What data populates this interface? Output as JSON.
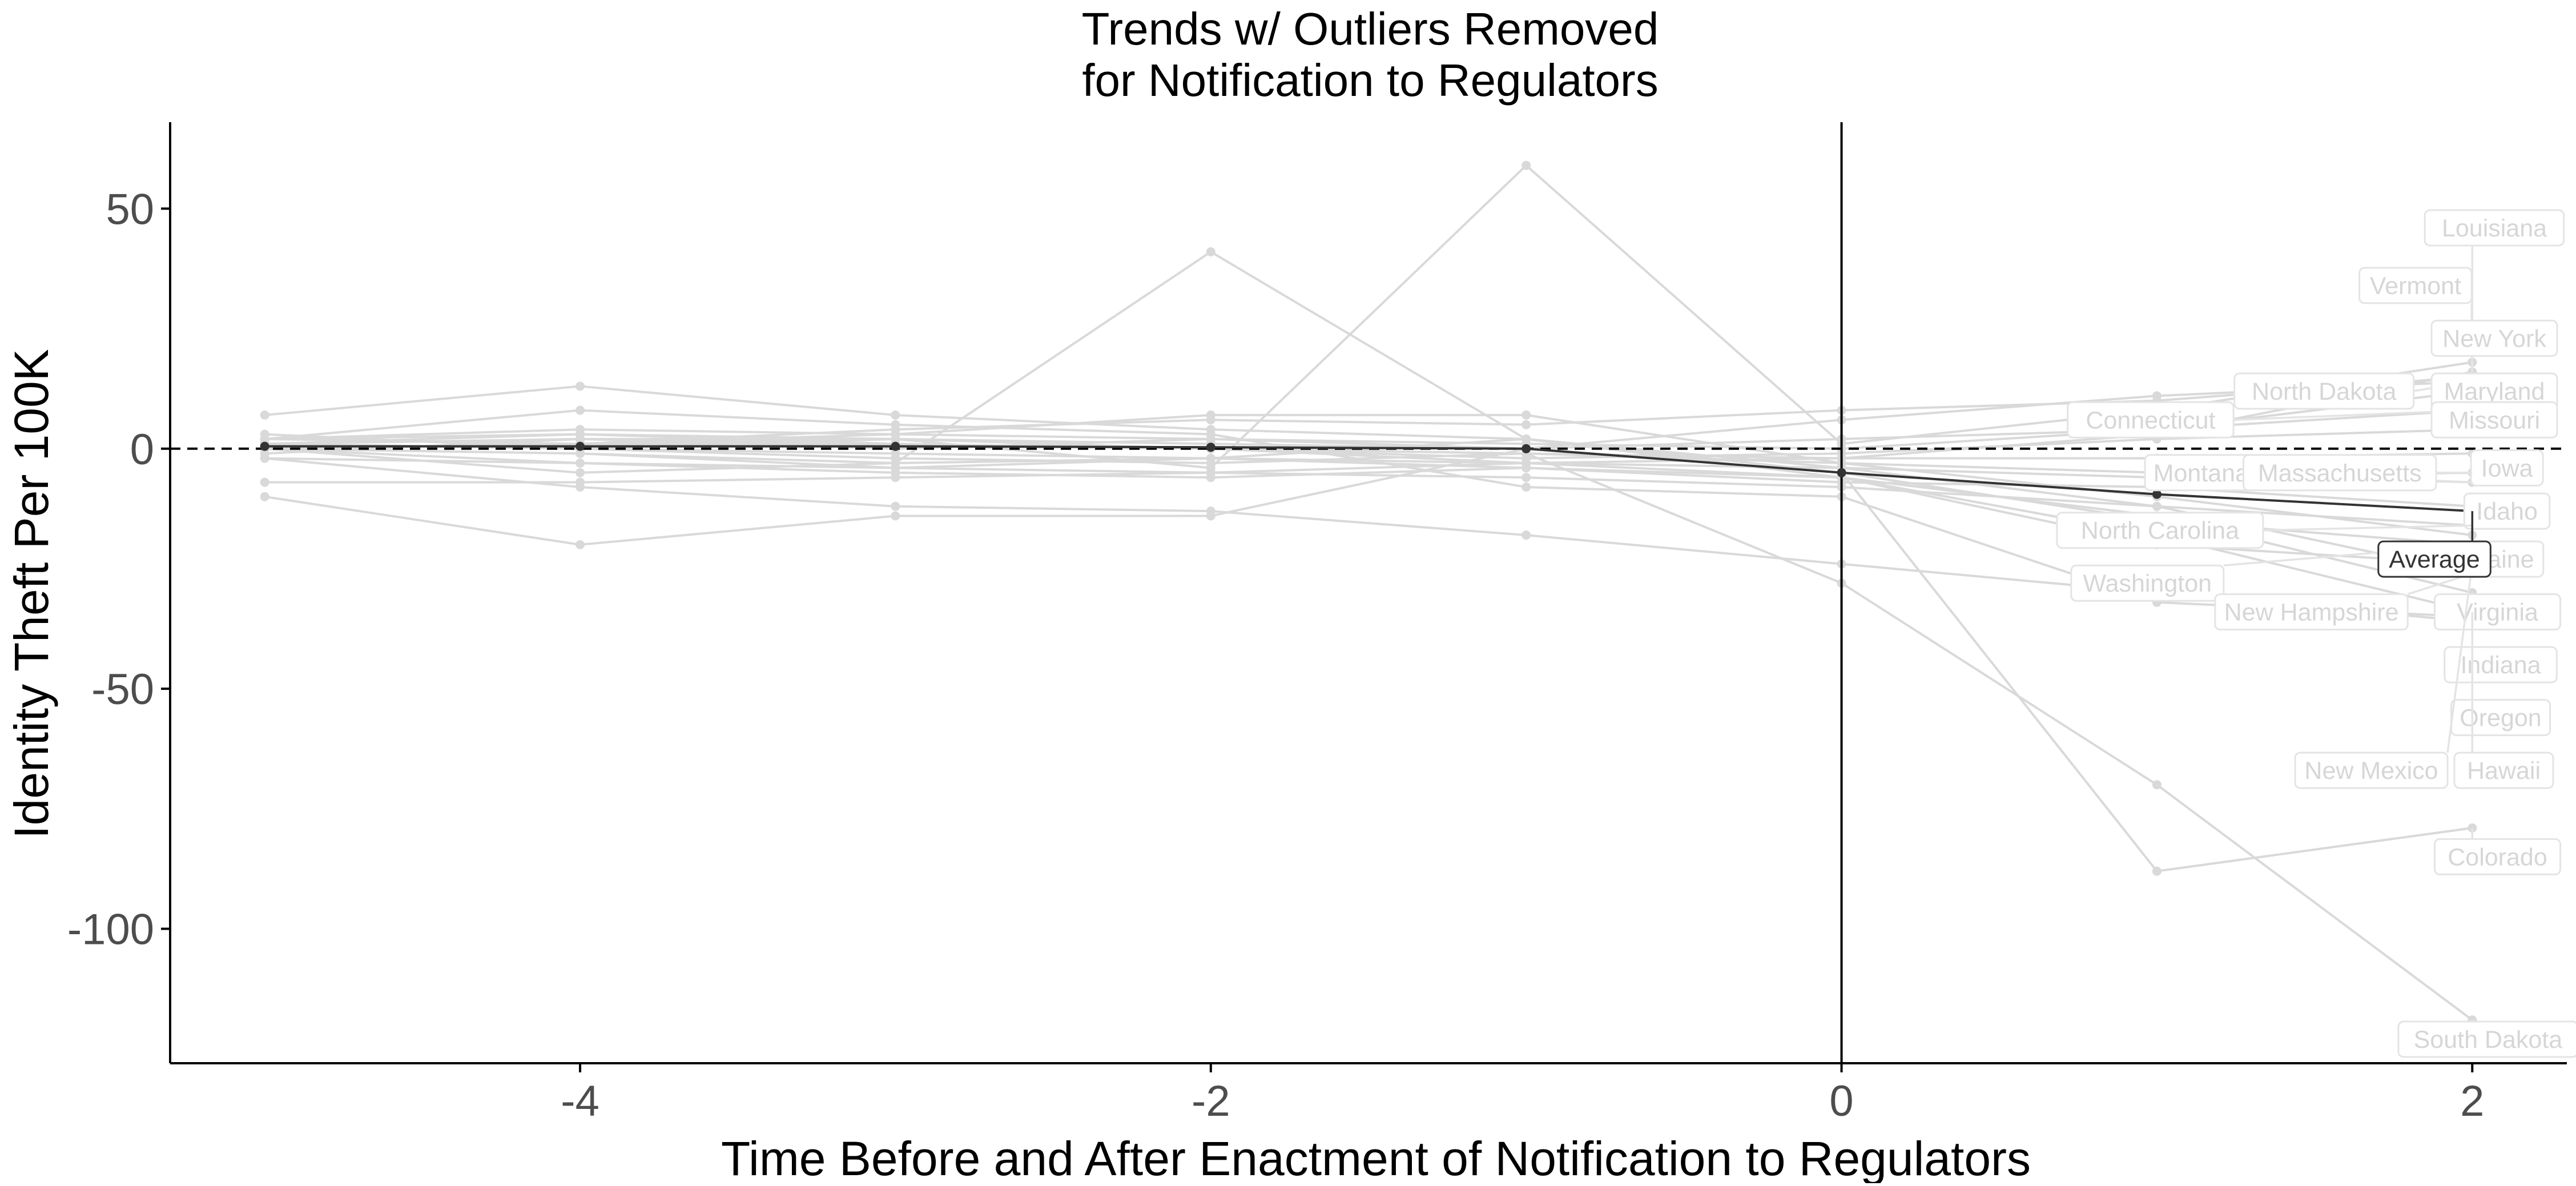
{
  "chart_data": {
    "type": "line",
    "title_lines": [
      "Trends w/ Outliers Removed",
      "for Notification to Regulators"
    ],
    "xlabel": "Time Before and After Enactment of Notification to Regulators",
    "ylabel": "Identity Theft Per 100K",
    "xlim": [
      -5.3,
      2.3
    ],
    "ylim": [
      -128,
      68
    ],
    "x_ticks": [
      -4,
      -2,
      0,
      2
    ],
    "y_ticks": [
      50,
      0,
      -50,
      -100
    ],
    "x_tick_labels": [
      "-4",
      "-2",
      "0",
      "2"
    ],
    "y_tick_labels": [
      "50",
      "0",
      "-50",
      "-100"
    ],
    "reference_lines": {
      "horizontal_dashed_y": 0,
      "vertical_solid_x": 0
    },
    "grid": false,
    "legend": "none",
    "colors": {
      "state_lines": "#d9d9d9",
      "average_line": "#333333",
      "axis": "#000000"
    },
    "average_series": {
      "name": "Average",
      "points": [
        [
          -5,
          0.5
        ],
        [
          -4,
          0.5
        ],
        [
          -3,
          0.5
        ],
        [
          -2,
          0.3
        ],
        [
          -1,
          0
        ],
        [
          0,
          -5
        ],
        [
          1,
          -9.5
        ],
        [
          2,
          -13
        ]
      ]
    },
    "state_series": [
      {
        "name": "Louisiana",
        "label_y": 46,
        "points": [
          [
            -5,
            2
          ],
          [
            -4,
            3
          ],
          [
            -3,
            1
          ],
          [
            -2,
            0
          ],
          [
            -1,
            -1
          ],
          [
            0,
            -2
          ],
          [
            1,
            3
          ],
          [
            2,
            16
          ]
        ]
      },
      {
        "name": "Vermont",
        "label_y": 34,
        "points": [
          [
            -5,
            1
          ],
          [
            -4,
            2
          ],
          [
            -3,
            0
          ],
          [
            -2,
            2
          ],
          [
            -1,
            1
          ],
          [
            0,
            0
          ],
          [
            1,
            4
          ],
          [
            2,
            12
          ]
        ]
      },
      {
        "name": "New York",
        "label_y": 23,
        "points": [
          [
            -5,
            3
          ],
          [
            -4,
            0
          ],
          [
            -3,
            2
          ],
          [
            -2,
            -4
          ],
          [
            -1,
            59
          ],
          [
            0,
            1
          ],
          [
            1,
            8
          ],
          [
            2,
            18
          ]
        ]
      },
      {
        "name": "North Dakota",
        "label_y": 12,
        "points": [
          [
            -5,
            2
          ],
          [
            -4,
            4
          ],
          [
            -3,
            3
          ],
          [
            -2,
            2
          ],
          [
            -1,
            0
          ],
          [
            0,
            6
          ],
          [
            1,
            11
          ],
          [
            2,
            14
          ]
        ]
      },
      {
        "name": "Maryland",
        "label_y": 12,
        "points": [
          [
            -5,
            0
          ],
          [
            -4,
            1
          ],
          [
            -3,
            4
          ],
          [
            -2,
            6
          ],
          [
            -1,
            5
          ],
          [
            0,
            8
          ],
          [
            1,
            10
          ],
          [
            2,
            15
          ]
        ]
      },
      {
        "name": "Connecticut",
        "label_y": 6,
        "points": [
          [
            -5,
            1
          ],
          [
            -4,
            2
          ],
          [
            -3,
            2
          ],
          [
            -2,
            1
          ],
          [
            -1,
            0
          ],
          [
            0,
            2
          ],
          [
            1,
            4
          ],
          [
            2,
            8
          ]
        ]
      },
      {
        "name": "Missouri",
        "label_y": 6,
        "points": [
          [
            -5,
            0
          ],
          [
            -4,
            1
          ],
          [
            -3,
            1
          ],
          [
            -2,
            0
          ],
          [
            -1,
            -2
          ],
          [
            0,
            -1
          ],
          [
            1,
            2
          ],
          [
            2,
            4
          ]
        ]
      },
      {
        "name": "Iowa",
        "label_y": -4,
        "points": [
          [
            -5,
            -1
          ],
          [
            -4,
            2
          ],
          [
            -3,
            1
          ],
          [
            -2,
            0
          ],
          [
            -1,
            -3
          ],
          [
            0,
            -2
          ],
          [
            1,
            -2
          ],
          [
            2,
            -1
          ]
        ]
      },
      {
        "name": "Montana",
        "label_y": -5,
        "points": [
          [
            -5,
            1
          ],
          [
            -4,
            0
          ],
          [
            -3,
            -2
          ],
          [
            -2,
            -3
          ],
          [
            -1,
            -1
          ],
          [
            0,
            -3
          ],
          [
            1,
            -5
          ],
          [
            2,
            -7
          ]
        ]
      },
      {
        "name": "Massachusetts",
        "label_y": -5,
        "points": [
          [
            -5,
            0
          ],
          [
            -4,
            -1
          ],
          [
            -3,
            -4
          ],
          [
            -2,
            -5
          ],
          [
            -1,
            -3
          ],
          [
            0,
            -4
          ],
          [
            1,
            -6
          ],
          [
            2,
            -5
          ]
        ]
      },
      {
        "name": "Idaho",
        "label_y": -13,
        "points": [
          [
            -5,
            -2
          ],
          [
            -4,
            -3
          ],
          [
            -3,
            -5
          ],
          [
            -2,
            -6
          ],
          [
            -1,
            -4
          ],
          [
            0,
            -7
          ],
          [
            1,
            -8
          ],
          [
            2,
            -12
          ]
        ]
      },
      {
        "name": "North Carolina",
        "label_y": -17,
        "points": [
          [
            -5,
            -7
          ],
          [
            -4,
            -7
          ],
          [
            -3,
            -6
          ],
          [
            -2,
            -5
          ],
          [
            -1,
            -6
          ],
          [
            0,
            -8
          ],
          [
            1,
            -12
          ],
          [
            2,
            -16
          ]
        ]
      },
      {
        "name": "Maine",
        "label_y": -23,
        "points": [
          [
            -5,
            2
          ],
          [
            -4,
            1
          ],
          [
            -3,
            3
          ],
          [
            -2,
            7
          ],
          [
            -1,
            7
          ],
          [
            0,
            -3
          ],
          [
            1,
            -10
          ],
          [
            2,
            -18
          ]
        ]
      },
      {
        "name": "Washington",
        "label_y": -28,
        "points": [
          [
            -5,
            -10
          ],
          [
            -4,
            -20
          ],
          [
            -3,
            -14
          ],
          [
            -2,
            -14
          ],
          [
            -1,
            0
          ],
          [
            0,
            -5
          ],
          [
            1,
            -15
          ],
          [
            2,
            -20
          ]
        ]
      },
      {
        "name": "New Hampshire",
        "label_y": -34,
        "points": [
          [
            -5,
            7
          ],
          [
            -4,
            13
          ],
          [
            -3,
            7
          ],
          [
            -2,
            4
          ],
          [
            -1,
            2
          ],
          [
            0,
            -4
          ],
          [
            1,
            -12
          ],
          [
            2,
            -26
          ]
        ]
      },
      {
        "name": "Virginia",
        "label_y": -34,
        "points": [
          [
            -5,
            0
          ],
          [
            -4,
            -5
          ],
          [
            -3,
            -3
          ],
          [
            -2,
            41
          ],
          [
            -1,
            2
          ],
          [
            0,
            -6
          ],
          [
            1,
            -14
          ],
          [
            2,
            -30
          ]
        ]
      },
      {
        "name": "Indiana",
        "label_y": -45,
        "points": [
          [
            -5,
            0
          ],
          [
            -4,
            -1
          ],
          [
            -3,
            -3
          ],
          [
            -2,
            -2
          ],
          [
            -1,
            -4
          ],
          [
            0,
            -6
          ],
          [
            1,
            -18
          ],
          [
            2,
            -34
          ]
        ]
      },
      {
        "name": "Oregon",
        "label_y": -56,
        "points": [
          [
            -5,
            -2
          ],
          [
            -4,
            -8
          ],
          [
            -3,
            -12
          ],
          [
            -2,
            -13
          ],
          [
            -1,
            -18
          ],
          [
            0,
            -24
          ],
          [
            1,
            -30
          ],
          [
            2,
            -36
          ]
        ]
      },
      {
        "name": "New Mexico",
        "label_y": -67,
        "points": [
          [
            -5,
            1
          ],
          [
            -4,
            0
          ],
          [
            -3,
            -1
          ],
          [
            -2,
            -2
          ],
          [
            -1,
            -3
          ],
          [
            0,
            -6
          ],
          [
            1,
            -20
          ],
          [
            2,
            -24
          ]
        ]
      },
      {
        "name": "Hawaii",
        "label_y": -67,
        "points": [
          [
            -5,
            2
          ],
          [
            -4,
            8
          ],
          [
            -3,
            5
          ],
          [
            -2,
            3
          ],
          [
            -1,
            -8
          ],
          [
            0,
            -10
          ],
          [
            1,
            -32
          ],
          [
            2,
            -35
          ]
        ]
      },
      {
        "name": "Colorado",
        "label_y": -85,
        "points": [
          [
            -5,
            0
          ],
          [
            -4,
            -3
          ],
          [
            -3,
            -4
          ],
          [
            -2,
            -2
          ],
          [
            -1,
            2
          ],
          [
            0,
            -5
          ],
          [
            1,
            -88
          ],
          [
            2,
            -79
          ]
        ]
      },
      {
        "name": "South Dakota",
        "label_y": -123,
        "points": [
          [
            -5,
            1
          ],
          [
            -4,
            3
          ],
          [
            -3,
            2
          ],
          [
            -2,
            0
          ],
          [
            -1,
            -1
          ],
          [
            0,
            -28
          ],
          [
            1,
            -70
          ],
          [
            2,
            -119
          ]
        ]
      }
    ]
  },
  "label_layout": [
    {
      "name": "Louisiana",
      "gx": 2.07
    },
    {
      "name": "Vermont",
      "gx": 1.82
    },
    {
      "name": "New York",
      "gx": 2.07
    },
    {
      "name": "North Dakota",
      "gx": 1.53
    },
    {
      "name": "Maryland",
      "gx": 2.07
    },
    {
      "name": "Connecticut",
      "gx": 0.98
    },
    {
      "name": "Missouri",
      "gx": 2.07
    },
    {
      "name": "Iowa",
      "gx": 2.11
    },
    {
      "name": "Montana",
      "gx": 1.14
    },
    {
      "name": "Massachusetts",
      "gx": 1.58
    },
    {
      "name": "Idaho",
      "gx": 2.11
    },
    {
      "name": "North Carolina",
      "gx": 1.01
    },
    {
      "name": "Maine",
      "gx": 2.09
    },
    {
      "name": "Washington",
      "gx": 0.97
    },
    {
      "name": "New Hampshire",
      "gx": 1.49
    },
    {
      "name": "Virginia",
      "gx": 2.08
    },
    {
      "name": "Indiana",
      "gx": 2.09
    },
    {
      "name": "Oregon",
      "gx": 2.09
    },
    {
      "name": "New Mexico",
      "gx": 1.68
    },
    {
      "name": "Hawaii",
      "gx": 2.1
    },
    {
      "name": "Colorado",
      "gx": 2.08
    },
    {
      "name": "South Dakota",
      "gx": 2.05
    }
  ]
}
